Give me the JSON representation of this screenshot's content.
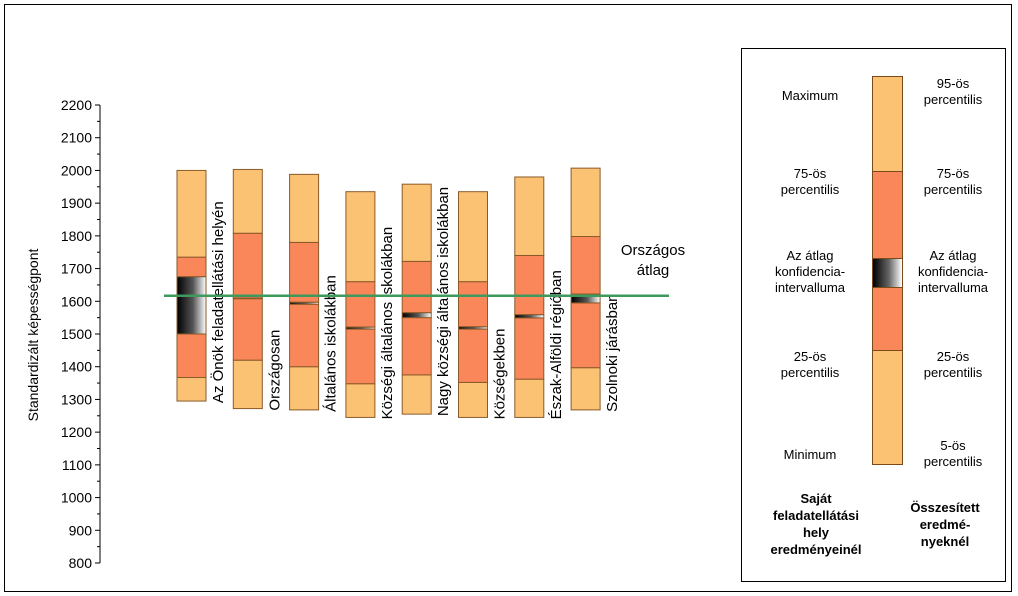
{
  "colors": {
    "outer": "#fcc274",
    "inner": "#f9875a",
    "border": "#8a5a2a",
    "avg_line": "#3d9a5c",
    "ci_dark": "#000000",
    "ci_light": "#ffffff"
  },
  "chart_data": {
    "type": "bar",
    "ylabel": "Standardizált képességpont",
    "ylim": [
      800,
      2200
    ],
    "yticks": [
      800,
      900,
      1000,
      1100,
      1200,
      1300,
      1400,
      1500,
      1600,
      1700,
      1800,
      1900,
      2000,
      2100,
      2200
    ],
    "national_average": 1617,
    "categories": [
      "Az Önök feladatellátási helyén",
      "Országosan",
      "Általános iskolákban",
      "Községi általános iskolákban",
      "Nagy községi általános iskolákban",
      "Községekben",
      "Észak-Alföldi régióban",
      "Szolnoki járásban"
    ],
    "series": [
      {
        "min": 1295,
        "p25": 1367,
        "ci_low": 1500,
        "ci_high": 1675,
        "p75": 1735,
        "max": 2000
      },
      {
        "min": 1272,
        "p25": 1420,
        "ci_low": 1608,
        "ci_high": 1610,
        "p75": 1808,
        "max": 2003
      },
      {
        "min": 1268,
        "p25": 1400,
        "ci_low": 1591,
        "ci_high": 1597,
        "p75": 1780,
        "max": 1988
      },
      {
        "min": 1245,
        "p25": 1348,
        "ci_low": 1515,
        "ci_high": 1521,
        "p75": 1660,
        "max": 1935
      },
      {
        "min": 1255,
        "p25": 1375,
        "ci_low": 1550,
        "ci_high": 1565,
        "p75": 1722,
        "max": 1958
      },
      {
        "min": 1245,
        "p25": 1352,
        "ci_low": 1515,
        "ci_high": 1522,
        "p75": 1660,
        "max": 1935
      },
      {
        "min": 1245,
        "p25": 1362,
        "ci_low": 1549,
        "ci_high": 1559,
        "p75": 1740,
        "max": 1980
      },
      {
        "min": 1268,
        "p25": 1397,
        "ci_low": 1595,
        "ci_high": 1622,
        "p75": 1798,
        "max": 2007
      }
    ]
  },
  "average_label_line1": "Országos",
  "average_label_line2": "átlag",
  "legend": {
    "left_labels": [
      "Maximum",
      "75-ös",
      "percentilis",
      "Az átlag",
      "konfidencia-",
      "intervalluma",
      "25-ös",
      "percentilis",
      "Minimum"
    ],
    "right_labels": [
      "95-ös",
      "percentilis",
      "75-ös",
      "percentilis",
      "Az átlag",
      "konfidencia-",
      "intervalluma",
      "25-ös",
      "percentilis",
      "5-ös",
      "percentilis"
    ],
    "left_title": [
      "Saját",
      "feladatellátási",
      "hely",
      "eredményeinél"
    ],
    "right_title": [
      "Összesített",
      "eredmé-",
      "nyeknél"
    ]
  }
}
